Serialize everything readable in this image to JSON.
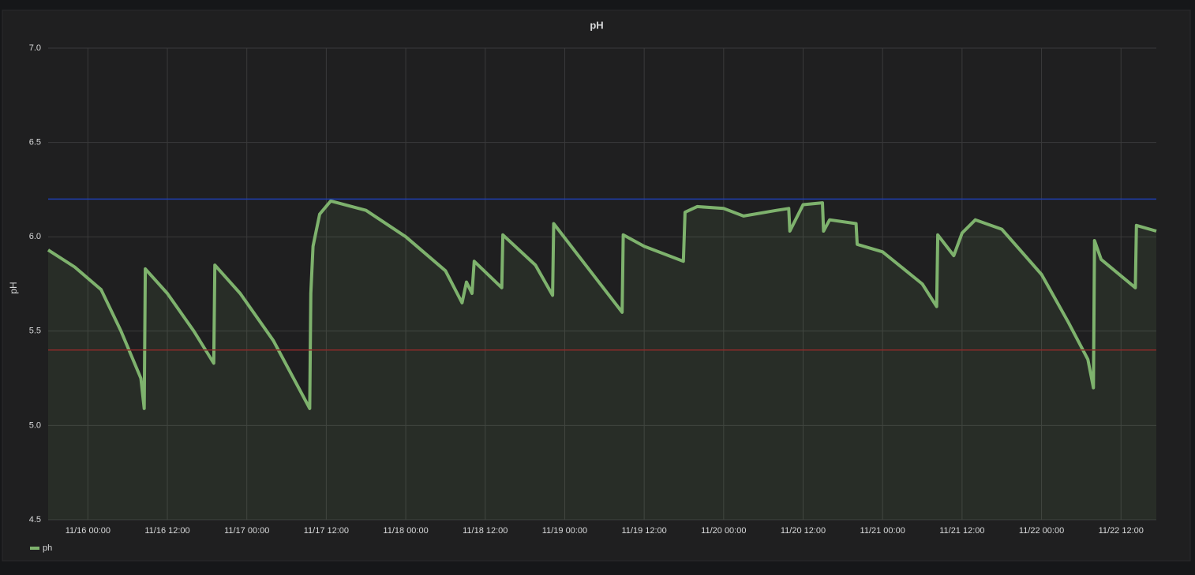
{
  "chart_data": {
    "type": "line",
    "title": "pH",
    "y_label": "pH",
    "x": [
      "11/15 18:00",
      "11/15 22:00",
      "11/16 02:00",
      "11/16 05:00",
      "11/16 08:00",
      "11/16 08:30",
      "11/16 08:40",
      "11/16 12:00",
      "11/16 16:00",
      "11/16 19:00",
      "11/16 19:10",
      "11/16 23:00",
      "11/17 04:00",
      "11/17 09:30",
      "11/17 09:40",
      "11/17 10:00",
      "11/17 11:00",
      "11/17 12:40",
      "11/17 18:00",
      "11/18 00:00",
      "11/18 06:00",
      "11/18 08:30",
      "11/18 09:10",
      "11/18 10:00",
      "11/18 10:20",
      "11/18 14:30",
      "11/18 14:40",
      "11/18 19:35",
      "11/18 22:10",
      "11/18 22:20",
      "11/19 08:40",
      "11/19 08:50",
      "11/19 12:00",
      "11/19 17:55",
      "11/19 18:10",
      "11/19 20:00",
      "11/20 00:00",
      "11/20 03:00",
      "11/20 08:00",
      "11/20 09:50",
      "11/20 10:00",
      "11/20 12:00",
      "11/20 14:55",
      "11/20 15:05",
      "11/20 16:00",
      "11/20 20:00",
      "11/20 20:10",
      "11/21 00:00",
      "11/21 06:00",
      "11/21 08:10",
      "11/21 08:20",
      "11/21 10:45",
      "11/21 12:00",
      "11/21 14:00",
      "11/21 18:00",
      "11/22 00:00",
      "11/22 04:00",
      "11/22 07:00",
      "11/22 07:50",
      "11/22 08:00",
      "11/22 09:00",
      "11/22 14:10",
      "11/22 14:20",
      "11/22 17:20"
    ],
    "series": [
      {
        "name": "ph",
        "color": "#7eb26d",
        "values": [
          5.93,
          5.84,
          5.72,
          5.5,
          5.25,
          5.09,
          5.83,
          5.7,
          5.5,
          5.33,
          5.85,
          5.7,
          5.45,
          5.09,
          5.7,
          5.95,
          6.12,
          6.19,
          6.14,
          6.0,
          5.82,
          5.65,
          5.76,
          5.7,
          5.87,
          5.73,
          6.01,
          5.85,
          5.69,
          6.07,
          5.6,
          6.01,
          5.95,
          5.87,
          6.13,
          6.16,
          6.15,
          6.11,
          6.14,
          6.15,
          6.03,
          6.17,
          6.18,
          6.03,
          6.09,
          6.07,
          5.96,
          5.92,
          5.75,
          5.63,
          6.01,
          5.9,
          6.02,
          6.09,
          6.04,
          5.8,
          5.55,
          5.35,
          5.2,
          5.98,
          5.88,
          5.73,
          6.06,
          6.03
        ]
      }
    ],
    "thresholds": [
      {
        "value": 6.2,
        "color": "#1f3fb0"
      },
      {
        "value": 5.4,
        "color": "#8a2a2a"
      }
    ],
    "xlim": [
      "11/15 18:00",
      "11/22 17:20"
    ],
    "xticks": [
      "11/16 00:00",
      "11/16 12:00",
      "11/17 00:00",
      "11/17 12:00",
      "11/18 00:00",
      "11/18 12:00",
      "11/19 00:00",
      "11/19 12:00",
      "11/20 00:00",
      "11/20 12:00",
      "11/21 00:00",
      "11/21 12:00",
      "11/22 00:00",
      "11/22 12:00"
    ],
    "ylim": [
      4.5,
      7.0
    ],
    "yticks": [
      {
        "value": 4.5,
        "label": "4.5"
      },
      {
        "value": 5.0,
        "label": "5.0"
      },
      {
        "value": 5.5,
        "label": "5.5"
      },
      {
        "value": 6.0,
        "label": "6.0"
      },
      {
        "value": 6.5,
        "label": "6.5"
      },
      {
        "value": 7.0,
        "label": "7.0"
      }
    ],
    "grid": true,
    "legend": "bottom-left"
  }
}
